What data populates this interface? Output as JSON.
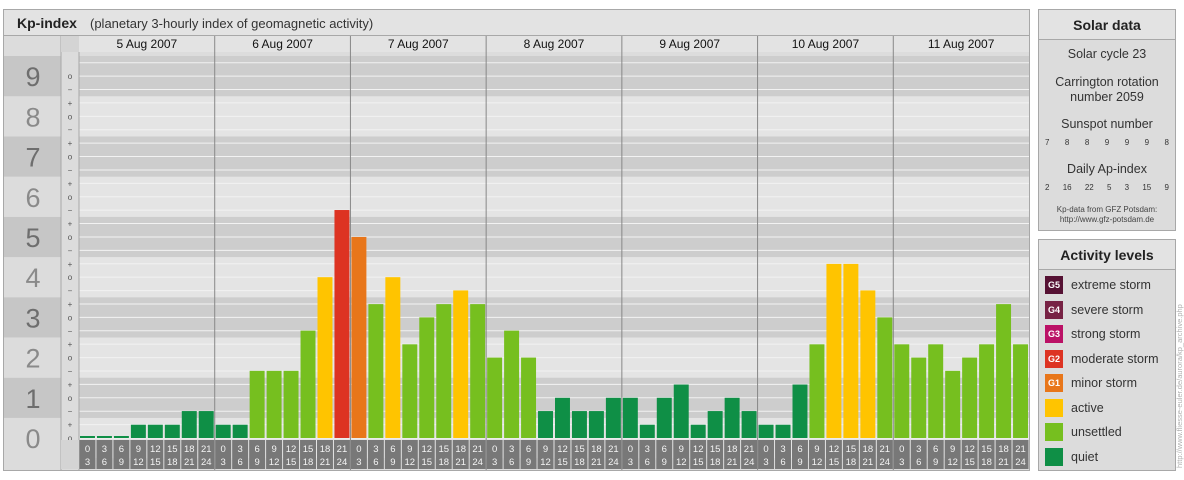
{
  "kp_panel": {
    "title": "Kp-index",
    "subtitle": "(planetary 3-hourly index of geomagnetic activity)"
  },
  "chart_data": {
    "type": "bar",
    "title": "Kp-index",
    "subtitle": "(planetary 3-hourly index of geomagnetic activity)",
    "ylim": [
      0,
      9
    ],
    "y_major_ticks": [
      "0",
      "1",
      "2",
      "3",
      "4",
      "5",
      "6",
      "7",
      "8",
      "9"
    ],
    "y_minor_ticks": [
      "o",
      "+",
      "−"
    ],
    "days": [
      "5 Aug 2007",
      "6 Aug 2007",
      "7 Aug 2007",
      "8 Aug 2007",
      "9 Aug 2007",
      "10 Aug 2007",
      "11 Aug 2007"
    ],
    "interval_start_hours": [
      "0",
      "3",
      "6",
      "9",
      "12",
      "15",
      "18",
      "21"
    ],
    "interval_end_hours": [
      "3",
      "6",
      "9",
      "12",
      "15",
      "18",
      "21",
      "24"
    ],
    "grid": true,
    "values": [
      0.0,
      0.0,
      0.0,
      0.33,
      0.33,
      0.33,
      0.67,
      0.67,
      0.33,
      0.33,
      1.67,
      1.67,
      1.67,
      2.67,
      4.0,
      5.67,
      5.0,
      3.33,
      4.0,
      2.33,
      3.0,
      3.33,
      3.67,
      3.33,
      2.0,
      2.67,
      2.0,
      0.67,
      1.0,
      0.67,
      0.67,
      1.0,
      1.0,
      0.33,
      1.0,
      1.33,
      0.33,
      0.67,
      1.0,
      0.67,
      0.33,
      0.33,
      1.33,
      2.33,
      4.33,
      4.33,
      3.67,
      3.0,
      2.33,
      2.0,
      2.33,
      1.67,
      2.0,
      2.33,
      3.33,
      2.33
    ],
    "level_colors": {
      "quiet": "#0f8f46",
      "unsettled": "#76bf1f",
      "active": "#ffc400",
      "minor_storm": "#e8761a",
      "moderate_storm": "#dd3322",
      "strong_storm": "#bb1166",
      "severe_storm": "#772244",
      "extreme_storm": "#551133"
    }
  },
  "solar_data": {
    "title": "Solar data",
    "solar_cycle": "Solar cycle 23",
    "carrington_line1": "Carrington rotation",
    "carrington_line2": "number 2059",
    "sunspot_label": "Sunspot number",
    "sunspot_values": [
      "7",
      "8",
      "8",
      "9",
      "9",
      "9",
      "8"
    ],
    "ap_label": "Daily Ap-index",
    "ap_values": [
      "2",
      "16",
      "22",
      "5",
      "3",
      "15",
      "9"
    ],
    "credit_line1": "Kp-data from GFZ Potsdam:",
    "credit_line2": "http://www.gfz-potsdam.de"
  },
  "activity_levels": {
    "title": "Activity levels",
    "items": [
      {
        "code": "G5",
        "label": "extreme storm",
        "color": "#551133"
      },
      {
        "code": "G4",
        "label": "severe storm",
        "color": "#772244"
      },
      {
        "code": "G3",
        "label": "strong storm",
        "color": "#bb1166"
      },
      {
        "code": "G2",
        "label": "moderate storm",
        "color": "#dd3322"
      },
      {
        "code": "G1",
        "label": "minor storm",
        "color": "#e8761a"
      },
      {
        "code": "",
        "label": "active",
        "color": "#ffc400"
      },
      {
        "code": "",
        "label": "unsettled",
        "color": "#76bf1f"
      },
      {
        "code": "",
        "label": "quiet",
        "color": "#0f8f46"
      }
    ]
  },
  "watermark": "http://www.fliesse-euler.de/aurora/kp_archive.php"
}
